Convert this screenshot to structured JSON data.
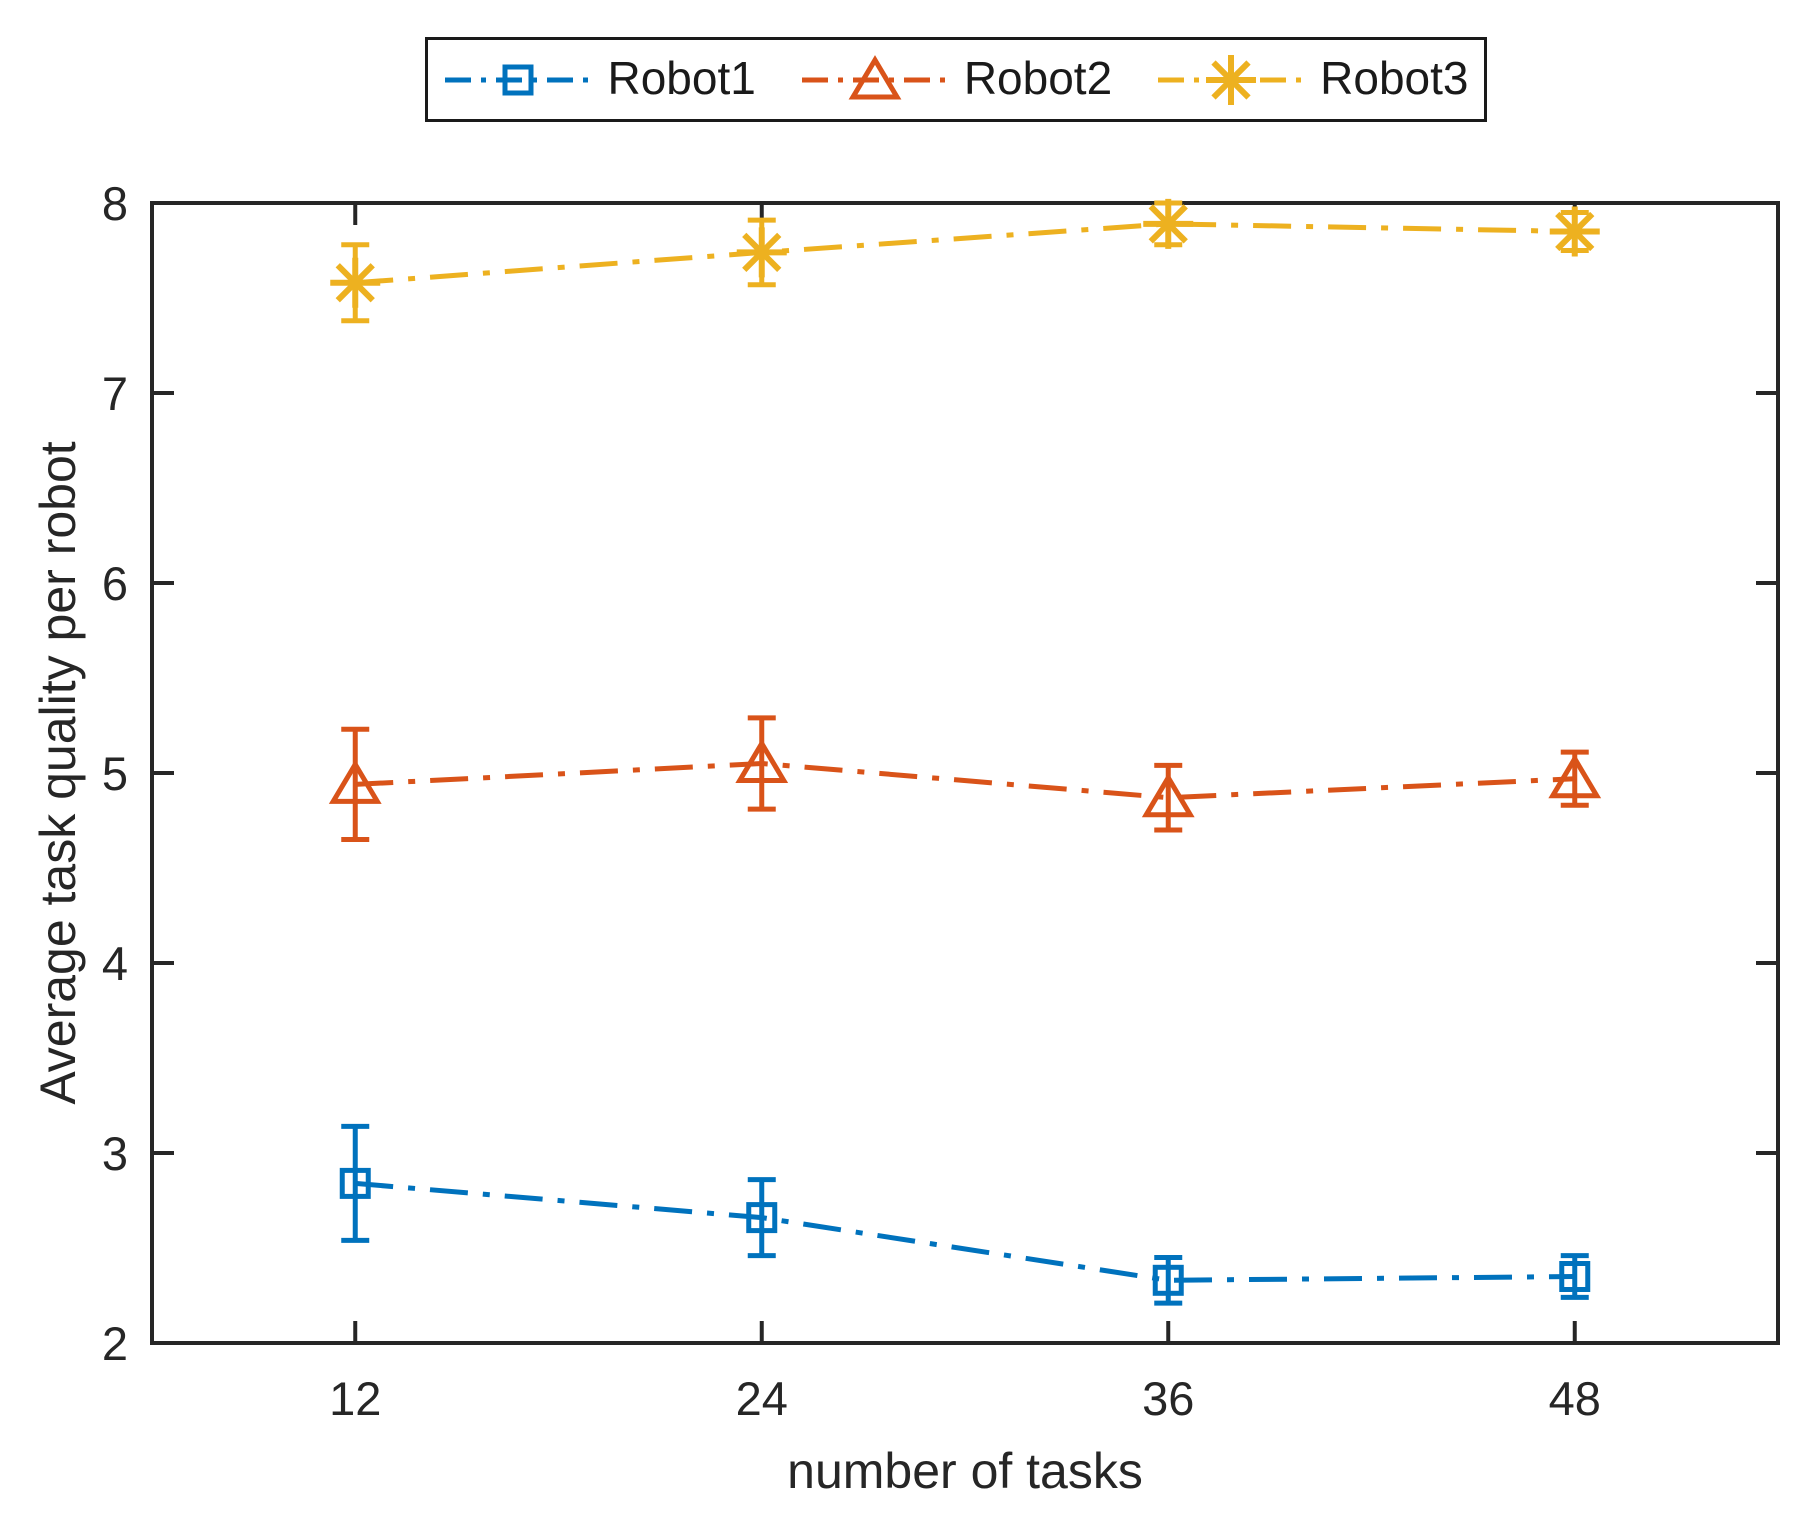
{
  "chart_data": {
    "type": "line",
    "subtype": "errorbar",
    "title": "",
    "xlabel": "number of tasks",
    "ylabel": "Average task quality per robot",
    "x": [
      12,
      24,
      36,
      48
    ],
    "xticks": [
      12,
      24,
      36,
      48
    ],
    "yticks": [
      2,
      3,
      4,
      5,
      6,
      7,
      8
    ],
    "xlim": [
      6,
      54
    ],
    "ylim": [
      2,
      8
    ],
    "grid": false,
    "legend_position": "top-center-outside",
    "line_style": "dash-dot",
    "axis_color": "#262626",
    "series": [
      {
        "name": "Robot1",
        "marker": "square",
        "color": "#0072BD",
        "values": [
          2.84,
          2.66,
          2.33,
          2.35
        ],
        "errors": [
          0.3,
          0.2,
          0.12,
          0.11
        ]
      },
      {
        "name": "Robot2",
        "marker": "triangle",
        "color": "#D95319",
        "values": [
          4.94,
          5.05,
          4.87,
          4.97
        ],
        "errors": [
          0.29,
          0.24,
          0.17,
          0.14
        ]
      },
      {
        "name": "Robot3",
        "marker": "asterisk",
        "color": "#EDB120",
        "values": [
          7.58,
          7.74,
          7.89,
          7.85
        ],
        "errors": [
          0.2,
          0.17,
          0.11,
          0.1
        ]
      }
    ]
  }
}
